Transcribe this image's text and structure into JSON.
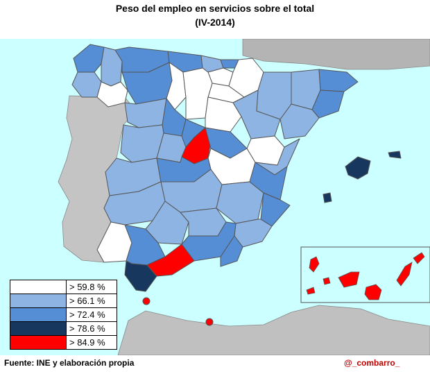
{
  "title": "Peso del empleo en servicios sobre el total",
  "subtitle": "(IV-2014)",
  "legend": [
    {
      "label": "> 59.8  %",
      "color": "#ffffff"
    },
    {
      "label": "> 66.1  %",
      "color": "#8eb4e3"
    },
    {
      "label": "> 72.4  %",
      "color": "#558ed5"
    },
    {
      "label": "> 78.6  %",
      "color": "#17375e"
    },
    {
      "label": "> 84.9  %",
      "color": "#ff0000"
    }
  ],
  "source": "Fuente: INE y elaboración  propia",
  "credit": "@_combarro_",
  "colors": {
    "sea": "#ccffff",
    "neighbor": "#b0b0b0",
    "border": "#555555"
  }
}
